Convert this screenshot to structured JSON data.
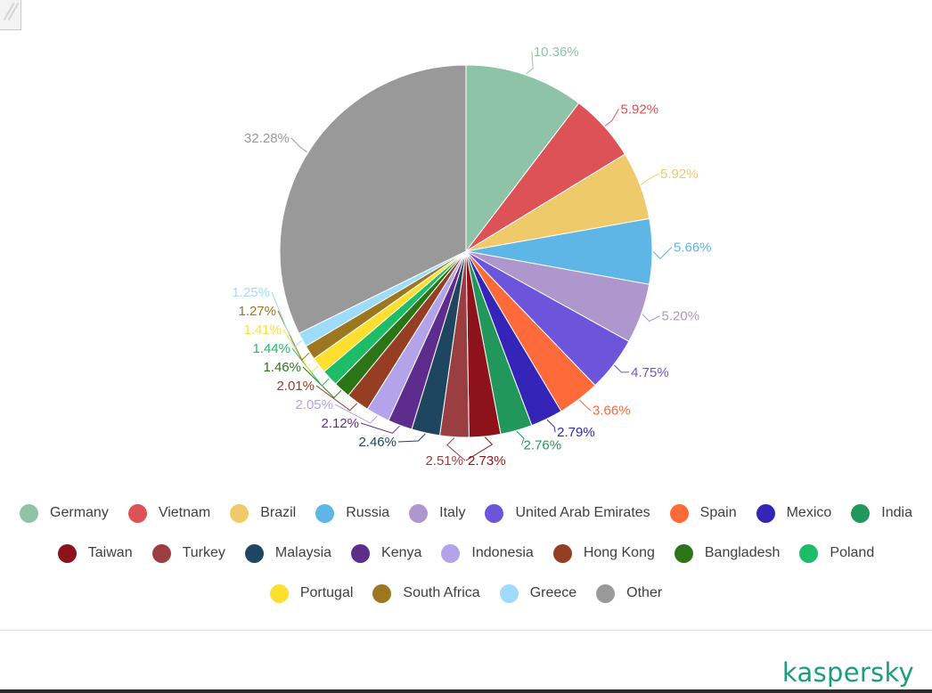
{
  "chart_data": {
    "type": "pie",
    "title": "",
    "slices": [
      {
        "name": "Germany",
        "value": 10.36,
        "label": "10.36%",
        "color": "#8fc3a7"
      },
      {
        "name": "Vietnam",
        "value": 5.92,
        "label": "5.92%",
        "color": "#dd5257"
      },
      {
        "name": "Brazil",
        "value": 5.92,
        "label": "5.92%",
        "color": "#efca6a"
      },
      {
        "name": "Russia",
        "value": 5.66,
        "label": "5.66%",
        "color": "#5db6e5"
      },
      {
        "name": "Italy",
        "value": 5.2,
        "label": "5.20%",
        "color": "#ad97cc"
      },
      {
        "name": "United Arab Emirates",
        "value": 4.75,
        "label": "4.75%",
        "color": "#6d55db"
      },
      {
        "name": "Spain",
        "value": 3.66,
        "label": "3.66%",
        "color": "#fe6a3a"
      },
      {
        "name": "Mexico",
        "value": 2.79,
        "label": "2.79%",
        "color": "#3425b8"
      },
      {
        "name": "India",
        "value": 2.76,
        "label": "2.76%",
        "color": "#22975c"
      },
      {
        "name": "Taiwan",
        "value": 2.73,
        "label": "2.73%",
        "color": "#8d1219"
      },
      {
        "name": "Turkey",
        "value": 2.51,
        "label": "2.51%",
        "color": "#9a3e41"
      },
      {
        "name": "Malaysia",
        "value": 2.46,
        "label": "2.46%",
        "color": "#1f4661"
      },
      {
        "name": "Kenya",
        "value": 2.12,
        "label": "2.12%",
        "color": "#5e2c8d"
      },
      {
        "name": "Indonesia",
        "value": 2.05,
        "label": "2.05%",
        "color": "#b2a3ea"
      },
      {
        "name": "Hong Kong",
        "value": 2.01,
        "label": "2.01%",
        "color": "#953e23"
      },
      {
        "name": "Bangladesh",
        "value": 1.46,
        "label": "1.46%",
        "color": "#2c7516"
      },
      {
        "name": "Poland",
        "value": 1.44,
        "label": "1.44%",
        "color": "#1dbd68"
      },
      {
        "name": "Portugal",
        "value": 1.41,
        "label": "1.41%",
        "color": "#fde02f"
      },
      {
        "name": "South Africa",
        "value": 1.27,
        "label": "1.27%",
        "color": "#9c7720"
      },
      {
        "name": "Greece",
        "value": 1.25,
        "label": "1.25%",
        "color": "#9fdcfb"
      },
      {
        "name": "Other",
        "value": 32.28,
        "label": "32.28%",
        "color": "#999999"
      }
    ],
    "legend_position": "bottom"
  },
  "branding": {
    "logo_text": "kaspersky"
  }
}
